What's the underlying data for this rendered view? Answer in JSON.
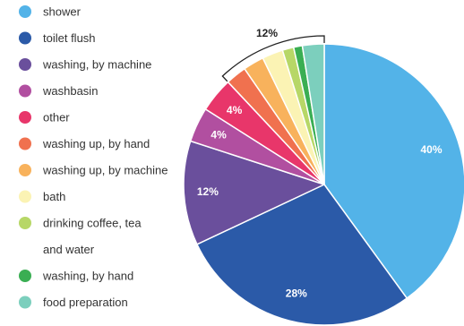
{
  "chart_data": {
    "type": "pie",
    "slices": [
      {
        "label": "shower",
        "value": 40,
        "color": "#53b3e8",
        "shown_label": "40%"
      },
      {
        "label": "toilet flush",
        "value": 28,
        "color": "#2b5aa8",
        "shown_label": "28%"
      },
      {
        "label": "washing, by machine",
        "value": 12,
        "color": "#6a4f9c",
        "shown_label": "12%"
      },
      {
        "label": "washbasin",
        "value": 4,
        "color": "#b14fa0",
        "shown_label": "4%"
      },
      {
        "label": "other",
        "value": 4,
        "color": "#e8366a",
        "shown_label": "4%"
      },
      {
        "label": "washing up, by hand",
        "value": 2.4,
        "color": "#f0714f",
        "shown_label": ""
      },
      {
        "label": "washing up, by machine",
        "value": 2.4,
        "color": "#f8b25c",
        "shown_label": ""
      },
      {
        "label": "bath",
        "value": 2.4,
        "color": "#fbf3b4",
        "shown_label": ""
      },
      {
        "label": "drinking coffee, tea and water",
        "value": 1.3,
        "color": "#b7d767",
        "shown_label": ""
      },
      {
        "label": "washing, by hand",
        "value": 1.0,
        "color": "#3aae53",
        "shown_label": ""
      },
      {
        "label": "food preparation",
        "value": 2.5,
        "color": "#7ccfbd",
        "shown_label": ""
      }
    ],
    "legend": [
      {
        "text": [
          "shower"
        ],
        "color": "#53b3e8"
      },
      {
        "text": [
          "toilet flush"
        ],
        "color": "#2b5aa8"
      },
      {
        "text": [
          "washing, by machine"
        ],
        "color": "#6a4f9c"
      },
      {
        "text": [
          "washbasin"
        ],
        "color": "#b14fa0"
      },
      {
        "text": [
          "other"
        ],
        "color": "#e8366a"
      },
      {
        "text": [
          "washing up, by hand"
        ],
        "color": "#f0714f"
      },
      {
        "text": [
          "washing up, by machine"
        ],
        "color": "#f8b25c"
      },
      {
        "text": [
          "bath"
        ],
        "color": "#fbf3b4"
      },
      {
        "text": [
          "drinking coffee, tea",
          "and water"
        ],
        "color": "#b7d767"
      },
      {
        "text": [
          "washing, by hand"
        ],
        "color": "#3aae53"
      },
      {
        "text": [
          "food preparation"
        ],
        "color": "#7ccfbd"
      }
    ],
    "group_bracket": {
      "label": "12%",
      "from_slice": 5,
      "to_slice": 10
    },
    "legend_position": "left"
  }
}
